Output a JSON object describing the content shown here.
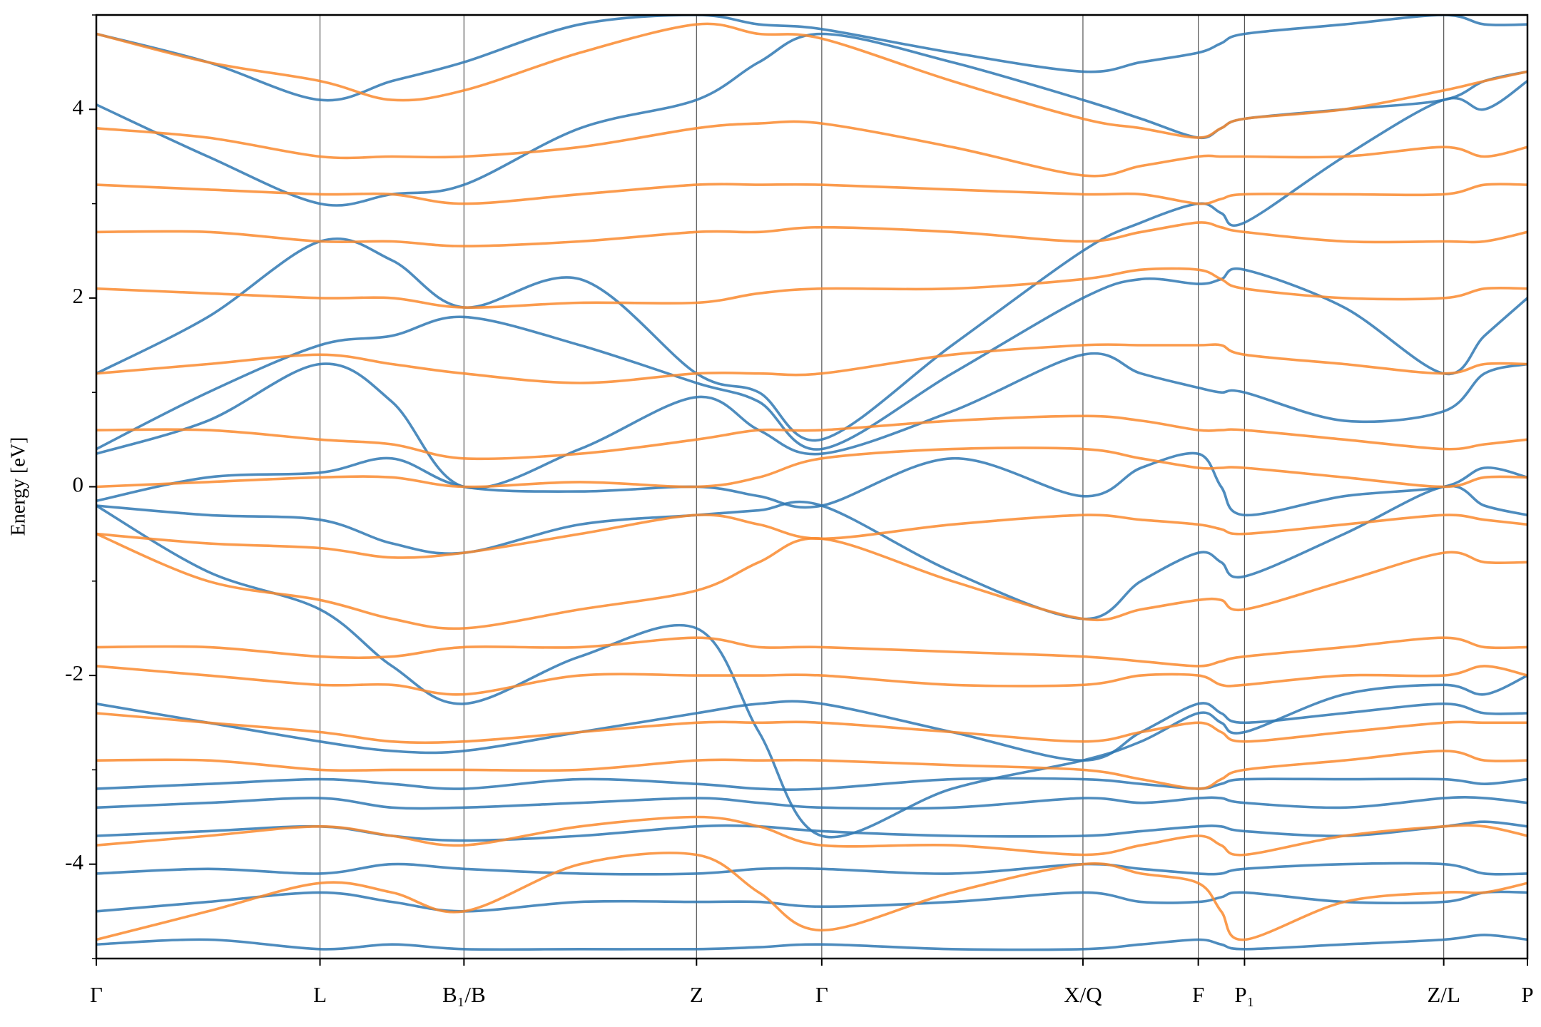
{
  "chart_data": {
    "type": "line",
    "ylabel": "Energy [eV]",
    "xlim": [
      0,
      1
    ],
    "ylim": [
      -5,
      5
    ],
    "yticks": [
      -4,
      -2,
      0,
      2,
      4
    ],
    "yminor_ticks": [
      -5,
      -3,
      -1,
      1,
      3,
      5
    ],
    "xticks": [
      {
        "value": 0,
        "label": "Γ"
      },
      {
        "value": 0.1563,
        "label": "L"
      },
      {
        "value": 0.2569,
        "label": "B₁/B"
      },
      {
        "value": 0.4194,
        "label": "Z"
      },
      {
        "value": 0.5069,
        "label": "Γ"
      },
      {
        "value": 0.6894,
        "label": "X/Q"
      },
      {
        "value": 0.77,
        "label": "F"
      },
      {
        "value": 0.8023,
        "label": "P₁"
      },
      {
        "value": 0.9415,
        "label": "Z/L"
      },
      {
        "value": 1.0,
        "label": "P"
      }
    ],
    "x": [
      0,
      0.078,
      0.1563,
      0.2066,
      0.2569,
      0.338,
      0.4194,
      0.463,
      0.5069,
      0.598,
      0.6894,
      0.73,
      0.77,
      0.786,
      0.8023,
      0.872,
      0.9415,
      0.97,
      1.0
    ],
    "series": [
      {
        "color": "#2f78b3",
        "values": [
          -4.85,
          -4.8,
          -4.9,
          -4.85,
          -4.9,
          -4.9,
          -4.9,
          -4.88,
          -4.85,
          -4.9,
          -4.9,
          -4.85,
          -4.8,
          -4.85,
          -4.9,
          -4.85,
          -4.8,
          -4.75,
          -4.8
        ]
      },
      {
        "color": "#2f78b3",
        "values": [
          -4.5,
          -4.4,
          -4.3,
          -4.4,
          -4.5,
          -4.4,
          -4.4,
          -4.4,
          -4.45,
          -4.4,
          -4.3,
          -4.4,
          -4.4,
          -4.35,
          -4.3,
          -4.4,
          -4.4,
          -4.3,
          -4.3
        ]
      },
      {
        "color": "#2f78b3",
        "values": [
          -4.1,
          -4.05,
          -4.1,
          -4.0,
          -4.05,
          -4.1,
          -4.1,
          -4.05,
          -4.05,
          -4.1,
          -4.0,
          -4.05,
          -4.1,
          -4.1,
          -4.05,
          -4.0,
          -4.0,
          -4.1,
          -4.1
        ]
      },
      {
        "color": "#2f78b3",
        "values": [
          -3.7,
          -3.65,
          -3.6,
          -3.7,
          -3.75,
          -3.7,
          -3.6,
          -3.6,
          -3.65,
          -3.7,
          -3.7,
          -3.65,
          -3.6,
          -3.6,
          -3.65,
          -3.7,
          -3.6,
          -3.55,
          -3.6
        ]
      },
      {
        "color": "#2f78b3",
        "values": [
          -3.4,
          -3.35,
          -3.3,
          -3.4,
          -3.4,
          -3.35,
          -3.3,
          -3.35,
          -3.4,
          -3.4,
          -3.3,
          -3.35,
          -3.3,
          -3.3,
          -3.35,
          -3.4,
          -3.3,
          -3.3,
          -3.35
        ]
      },
      {
        "color": "#2f78b3",
        "values": [
          -3.2,
          -3.15,
          -3.1,
          -3.15,
          -3.2,
          -3.1,
          -3.15,
          -3.2,
          -3.2,
          -3.1,
          -3.1,
          -3.15,
          -3.2,
          -3.15,
          -3.1,
          -3.1,
          -3.1,
          -3.15,
          -3.1
        ]
      },
      {
        "color": "#2f78b3",
        "values": [
          -2.3,
          -2.5,
          -2.7,
          -2.8,
          -2.8,
          -2.6,
          -2.4,
          -2.3,
          -2.3,
          -2.6,
          -2.9,
          -2.6,
          -2.3,
          -2.4,
          -2.5,
          -2.4,
          -2.3,
          -2.4,
          -2.4
        ]
      },
      {
        "color": "#2f78b3",
        "values": [
          -0.2,
          -0.9,
          -1.3,
          -1.9,
          -2.3,
          -1.8,
          -1.5,
          -2.6,
          -3.7,
          -3.2,
          -2.9,
          -2.7,
          -2.4,
          -2.5,
          -2.6,
          -2.2,
          -2.1,
          -2.2,
          -2.0
        ]
      },
      {
        "color": "#2f78b3",
        "values": [
          -0.2,
          -0.3,
          -0.35,
          -0.6,
          -0.7,
          -0.4,
          -0.3,
          -0.25,
          -0.2,
          -0.9,
          -1.4,
          -1.0,
          -0.7,
          -0.8,
          -0.95,
          -0.5,
          0.0,
          -0.2,
          -0.3
        ]
      },
      {
        "color": "#2f78b3",
        "values": [
          -0.15,
          0.1,
          0.15,
          0.3,
          0.0,
          -0.05,
          0.0,
          -0.1,
          -0.2,
          0.3,
          -0.1,
          0.2,
          0.35,
          0.0,
          -0.3,
          -0.1,
          0.0,
          0.2,
          0.1
        ]
      },
      {
        "color": "#2f78b3",
        "values": [
          0.35,
          0.7,
          1.3,
          0.9,
          0.0,
          0.4,
          0.95,
          0.6,
          0.35,
          0.8,
          1.4,
          1.2,
          1.05,
          1.0,
          1.0,
          0.7,
          0.8,
          1.2,
          1.3
        ]
      },
      {
        "color": "#2f78b3",
        "values": [
          0.4,
          1.0,
          1.5,
          1.6,
          1.8,
          1.5,
          1.1,
          0.9,
          0.4,
          1.2,
          2.0,
          2.2,
          2.15,
          2.2,
          2.3,
          1.9,
          1.2,
          1.6,
          2.0
        ]
      },
      {
        "color": "#2f78b3",
        "values": [
          1.2,
          1.8,
          2.6,
          2.4,
          1.9,
          2.2,
          1.2,
          1.0,
          0.5,
          1.5,
          2.5,
          2.8,
          3.0,
          2.9,
          2.8,
          3.5,
          4.1,
          4.0,
          4.3
        ]
      },
      {
        "color": "#2f78b3",
        "values": [
          4.05,
          3.5,
          3.0,
          3.1,
          3.2,
          3.8,
          4.1,
          4.5,
          4.8,
          4.5,
          4.1,
          3.9,
          3.7,
          3.8,
          3.9,
          4.0,
          4.1,
          4.3,
          4.4
        ]
      },
      {
        "color": "#2f78b3",
        "values": [
          4.8,
          4.5,
          4.1,
          4.3,
          4.5,
          4.9,
          5.0,
          4.9,
          4.85,
          4.6,
          4.4,
          4.5,
          4.6,
          4.7,
          4.8,
          4.9,
          5.0,
          4.9,
          4.9
        ]
      },
      {
        "color": "#fa8a2e",
        "values": [
          -4.8,
          -4.5,
          -4.2,
          -4.3,
          -4.5,
          -4.0,
          -3.9,
          -4.3,
          -4.7,
          -4.3,
          -4.0,
          -4.1,
          -4.2,
          -4.5,
          -4.8,
          -4.4,
          -4.3,
          -4.3,
          -4.2
        ]
      },
      {
        "color": "#fa8a2e",
        "values": [
          -3.8,
          -3.7,
          -3.6,
          -3.7,
          -3.8,
          -3.6,
          -3.5,
          -3.6,
          -3.8,
          -3.8,
          -3.9,
          -3.8,
          -3.7,
          -3.8,
          -3.9,
          -3.7,
          -3.6,
          -3.6,
          -3.7
        ]
      },
      {
        "color": "#fa8a2e",
        "values": [
          -2.9,
          -2.9,
          -3.0,
          -3.0,
          -3.0,
          -3.0,
          -2.9,
          -2.9,
          -2.9,
          -2.95,
          -3.0,
          -3.1,
          -3.2,
          -3.1,
          -3.0,
          -2.9,
          -2.8,
          -2.9,
          -2.9
        ]
      },
      {
        "color": "#fa8a2e",
        "values": [
          -2.4,
          -2.5,
          -2.6,
          -2.7,
          -2.7,
          -2.6,
          -2.5,
          -2.5,
          -2.5,
          -2.6,
          -2.7,
          -2.6,
          -2.5,
          -2.6,
          -2.7,
          -2.6,
          -2.5,
          -2.5,
          -2.5
        ]
      },
      {
        "color": "#fa8a2e",
        "values": [
          -1.9,
          -2.0,
          -2.1,
          -2.1,
          -2.2,
          -2.0,
          -2.0,
          -2.0,
          -2.0,
          -2.1,
          -2.1,
          -2.0,
          -2.0,
          -2.1,
          -2.1,
          -2.0,
          -2.0,
          -1.9,
          -2.0
        ]
      },
      {
        "color": "#fa8a2e",
        "values": [
          -1.7,
          -1.7,
          -1.8,
          -1.8,
          -1.7,
          -1.7,
          -1.6,
          -1.7,
          -1.7,
          -1.75,
          -1.8,
          -1.85,
          -1.9,
          -1.85,
          -1.8,
          -1.7,
          -1.6,
          -1.7,
          -1.7
        ]
      },
      {
        "color": "#fa8a2e",
        "values": [
          -0.5,
          -1.0,
          -1.2,
          -1.4,
          -1.5,
          -1.3,
          -1.1,
          -0.8,
          -0.55,
          -1.0,
          -1.4,
          -1.3,
          -1.2,
          -1.2,
          -1.3,
          -1.0,
          -0.7,
          -0.8,
          -0.8
        ]
      },
      {
        "color": "#fa8a2e",
        "values": [
          -0.5,
          -0.6,
          -0.65,
          -0.75,
          -0.7,
          -0.5,
          -0.3,
          -0.4,
          -0.55,
          -0.4,
          -0.3,
          -0.35,
          -0.4,
          -0.45,
          -0.5,
          -0.4,
          -0.3,
          -0.35,
          -0.4
        ]
      },
      {
        "color": "#fa8a2e",
        "values": [
          0.0,
          0.05,
          0.1,
          0.1,
          0.0,
          0.05,
          0.0,
          0.1,
          0.3,
          0.4,
          0.4,
          0.3,
          0.2,
          0.2,
          0.2,
          0.1,
          0.0,
          0.1,
          0.1
        ]
      },
      {
        "color": "#fa8a2e",
        "values": [
          0.6,
          0.6,
          0.5,
          0.45,
          0.3,
          0.35,
          0.5,
          0.6,
          0.6,
          0.7,
          0.75,
          0.7,
          0.6,
          0.6,
          0.6,
          0.5,
          0.4,
          0.45,
          0.5
        ]
      },
      {
        "color": "#fa8a2e",
        "values": [
          1.2,
          1.3,
          1.4,
          1.3,
          1.2,
          1.1,
          1.2,
          1.2,
          1.2,
          1.4,
          1.5,
          1.5,
          1.5,
          1.5,
          1.4,
          1.3,
          1.2,
          1.3,
          1.3
        ]
      },
      {
        "color": "#fa8a2e",
        "values": [
          2.1,
          2.05,
          2.0,
          2.0,
          1.9,
          1.95,
          1.95,
          2.05,
          2.1,
          2.1,
          2.2,
          2.3,
          2.3,
          2.2,
          2.1,
          2.0,
          2.0,
          2.1,
          2.1
        ]
      },
      {
        "color": "#fa8a2e",
        "values": [
          2.7,
          2.7,
          2.6,
          2.6,
          2.55,
          2.6,
          2.7,
          2.7,
          2.75,
          2.7,
          2.6,
          2.7,
          2.8,
          2.75,
          2.7,
          2.6,
          2.6,
          2.6,
          2.7
        ]
      },
      {
        "color": "#fa8a2e",
        "values": [
          3.2,
          3.15,
          3.1,
          3.1,
          3.0,
          3.1,
          3.2,
          3.2,
          3.2,
          3.15,
          3.1,
          3.1,
          3.0,
          3.05,
          3.1,
          3.1,
          3.1,
          3.2,
          3.2
        ]
      },
      {
        "color": "#fa8a2e",
        "values": [
          3.8,
          3.7,
          3.5,
          3.5,
          3.5,
          3.6,
          3.8,
          3.85,
          3.85,
          3.6,
          3.3,
          3.4,
          3.5,
          3.5,
          3.5,
          3.5,
          3.6,
          3.5,
          3.6
        ]
      },
      {
        "color": "#fa8a2e",
        "values": [
          4.8,
          4.5,
          4.3,
          4.1,
          4.2,
          4.6,
          4.9,
          4.8,
          4.75,
          4.3,
          3.9,
          3.8,
          3.7,
          3.8,
          3.9,
          4.0,
          4.2,
          4.3,
          4.4
        ]
      }
    ]
  }
}
